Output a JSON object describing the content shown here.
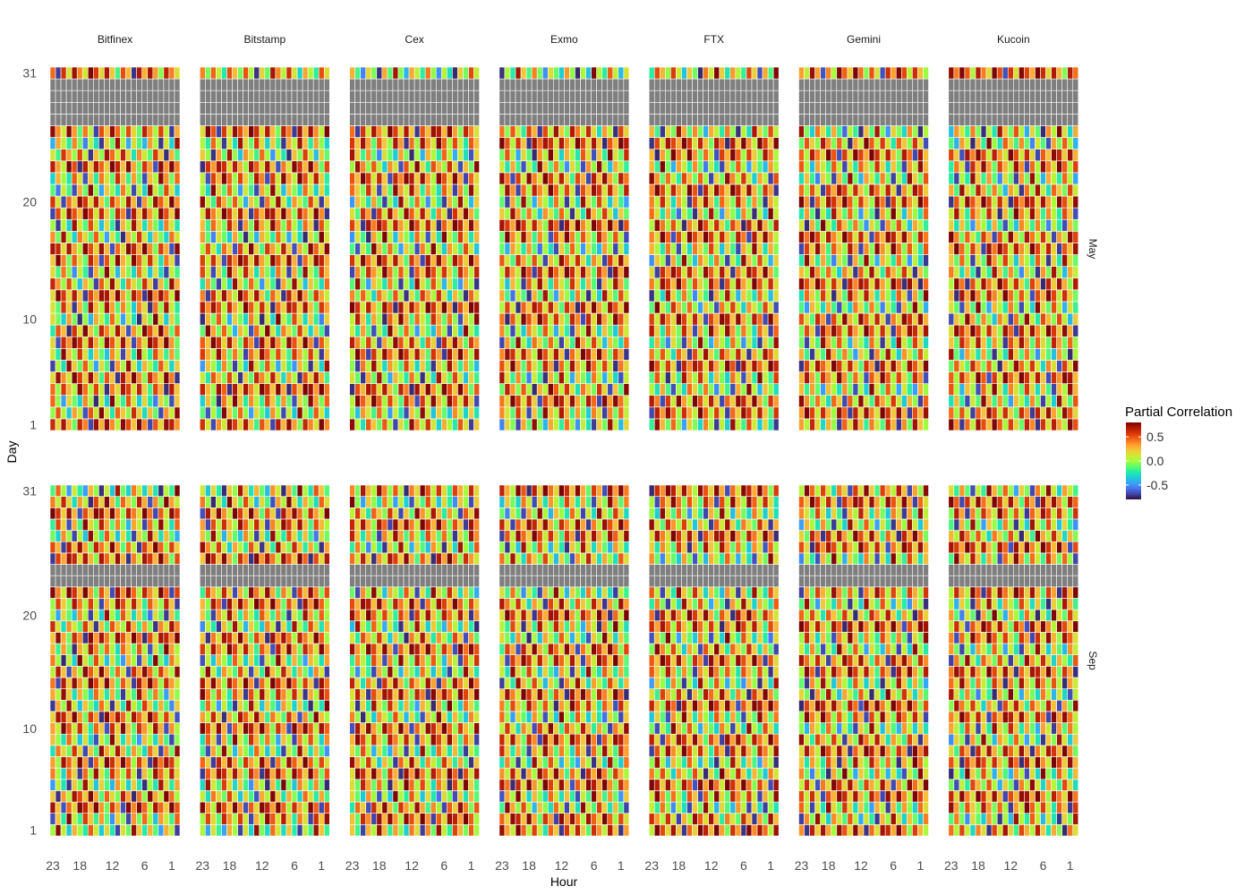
{
  "chart_data": {
    "type": "heatmap",
    "title": "",
    "xlabel": "Hour",
    "ylabel": "Day",
    "exchanges": [
      "Bitfinex",
      "Bitstamp",
      "Cex",
      "Exmo",
      "FTX",
      "Gemini",
      "Kucoin"
    ],
    "months": [
      "May",
      "Sep"
    ],
    "hours_reversed": [
      23,
      22,
      21,
      20,
      19,
      18,
      17,
      16,
      15,
      14,
      13,
      12,
      11,
      10,
      9,
      8,
      7,
      6,
      5,
      4,
      3,
      2,
      1,
      0
    ],
    "x_tick_labels": [
      "23",
      "18",
      "12",
      "6",
      "1"
    ],
    "y_tick_labels": [
      "1",
      "10",
      "20",
      "31"
    ],
    "legend": {
      "title": "Partial Correlation",
      "ticks": [
        "0.5",
        "0.0",
        "-0.5"
      ],
      "range": [
        -0.8,
        0.8
      ],
      "palette": "turbo",
      "na_color": "#7f7f7f"
    },
    "missing_days": {
      "May": [
        27,
        28,
        29,
        30
      ],
      "Sep": [
        23,
        24
      ]
    },
    "grid": false,
    "cells_note": "24 hourly cells x 31 daily rows per panel (14 panels); values estimated in range -0.8..0.8"
  }
}
